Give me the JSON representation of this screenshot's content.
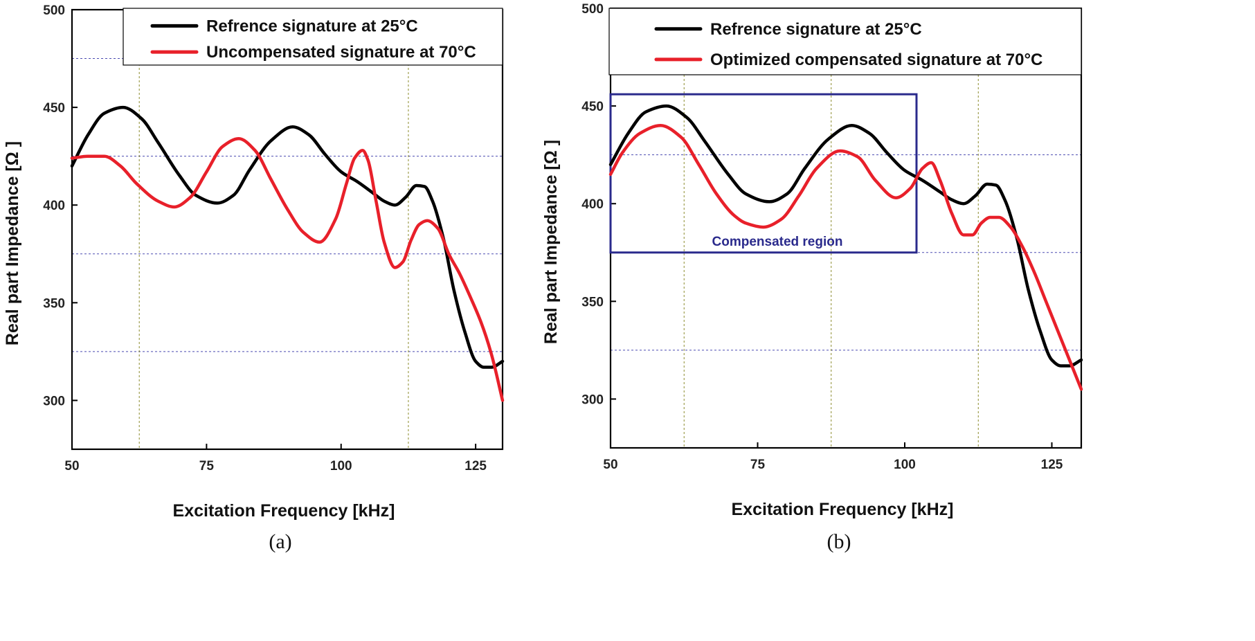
{
  "chart_data": [
    {
      "type": "line",
      "panel": "a",
      "caption": "(a)",
      "xlabel": "Excitation Frequency [kHz]",
      "ylabel": "Real part Impedance [Ω ]",
      "xlim": [
        50,
        130
      ],
      "ylim": [
        275,
        500
      ],
      "xticks": [
        50,
        75,
        100,
        125
      ],
      "yticks": [
        300,
        350,
        400,
        450,
        500
      ],
      "hgrid": [
        325,
        375,
        425,
        475
      ],
      "vgrid": [
        62.5,
        112.5
      ],
      "legend_position": "top-right",
      "series": [
        {
          "name": "Refrence signature at 25°C",
          "color": "#000000",
          "x": [
            50,
            53,
            56,
            59.5,
            63,
            66,
            70,
            73,
            77,
            80,
            83,
            87,
            91,
            94,
            97,
            100,
            103,
            106,
            108,
            110,
            112,
            114,
            115.5,
            117,
            119,
            121,
            123,
            125,
            126.5,
            128,
            130
          ],
          "y": [
            420,
            436,
            447,
            450,
            444,
            432,
            415,
            405,
            401,
            405,
            418,
            433,
            440,
            436,
            426,
            417,
            412,
            406,
            402,
            400,
            404,
            410,
            409.5,
            402,
            383,
            356,
            335,
            320,
            317,
            317,
            320
          ]
        },
        {
          "name": "Uncompensated signature at 70°C",
          "color": "#e8202a",
          "x": [
            50,
            53,
            56,
            59,
            62,
            66,
            69,
            72,
            75,
            78,
            81,
            84,
            87,
            90,
            93,
            96,
            99,
            101,
            102.5,
            104,
            105,
            106.5,
            108,
            110,
            111.5,
            113,
            114.5,
            116,
            118,
            120,
            122,
            124,
            126,
            128,
            130
          ],
          "y": [
            424,
            425,
            425,
            420,
            411,
            402,
            399,
            404,
            417,
            430,
            434,
            428,
            413,
            398,
            386,
            381,
            393,
            411,
            424,
            428,
            423,
            402,
            381,
            368,
            371,
            382,
            390,
            392,
            388,
            375,
            365,
            353,
            340,
            323,
            300
          ]
        }
      ]
    },
    {
      "type": "line",
      "panel": "b",
      "caption": "(b)",
      "xlabel": "Excitation Frequency [kHz]",
      "ylabel": "Real part Impedance [Ω ]",
      "xlim": [
        50,
        130
      ],
      "ylim": [
        275,
        500
      ],
      "xticks": [
        50,
        75,
        100,
        125
      ],
      "yticks": [
        300,
        350,
        400,
        450,
        500
      ],
      "hgrid": [
        325,
        375,
        425
      ],
      "vgrid": [
        62.5,
        87.5,
        112.5
      ],
      "legend_position": "top-right",
      "annotation": {
        "label": "Compensated region",
        "x_range": [
          50,
          102
        ],
        "y_range": [
          375,
          456
        ]
      },
      "series": [
        {
          "name": "Refrence signature at 25°C",
          "color": "#000000",
          "x": [
            50,
            53,
            56,
            59.5,
            63,
            66,
            70,
            73,
            77,
            80,
            83,
            87,
            91,
            94,
            97,
            100,
            103,
            106,
            108,
            110,
            112,
            114,
            115.5,
            117,
            119,
            121,
            123,
            125,
            126.5,
            128,
            130
          ],
          "y": [
            420,
            436,
            447,
            450,
            444,
            432,
            415,
            405,
            401,
            405,
            418,
            433,
            440,
            436,
            426,
            417,
            412,
            406,
            402,
            400,
            404,
            410,
            409.5,
            402,
            383,
            356,
            335,
            320,
            317,
            317,
            320
          ]
        },
        {
          "name": "Optimized compensated signature at 70°C",
          "color": "#e8202a",
          "x": [
            50,
            52,
            55,
            58.5,
            62,
            65,
            68,
            71,
            73,
            76,
            79,
            82,
            85,
            89,
            92,
            95,
            98.5,
            101,
            103,
            104.5,
            106,
            108,
            110,
            111.5,
            113,
            114.5,
            116,
            118,
            120,
            122,
            124,
            126,
            128,
            130
          ],
          "y": [
            415,
            426,
            436,
            440,
            434,
            420,
            405,
            394,
            390,
            388,
            392,
            404,
            418,
            427,
            424,
            412,
            403,
            408,
            418,
            421,
            412,
            395,
            384,
            384,
            390,
            393,
            393,
            388,
            378,
            365,
            350,
            335,
            320,
            305
          ]
        }
      ]
    }
  ]
}
